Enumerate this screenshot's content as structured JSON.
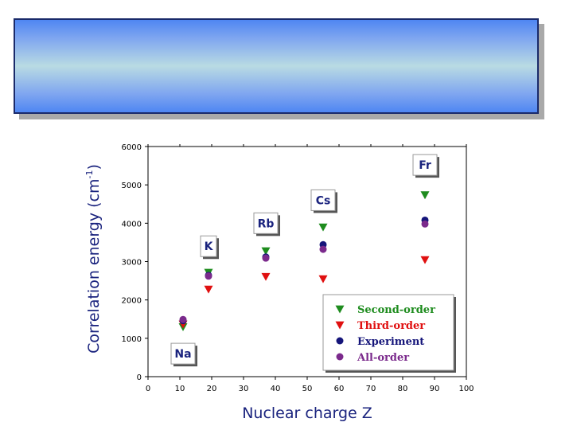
{
  "colors": {
    "second_order": "#1e8c1e",
    "third_order": "#e01010",
    "experiment": "#15157a",
    "all_order": "#7b2a8c",
    "axis_label": "#1a237e"
  },
  "chart_data": {
    "type": "scatter",
    "title": "",
    "xlabel": "Nuclear charge Z",
    "ylabel": "Correlation energy (cm",
    "ylabel_sup": "-1",
    "ylabel_close": ")",
    "xlim": [
      0,
      100
    ],
    "ylim": [
      0,
      6000
    ],
    "xticks": [
      0,
      10,
      20,
      30,
      40,
      50,
      60,
      70,
      80,
      90,
      100
    ],
    "yticks": [
      0,
      1000,
      2000,
      3000,
      4000,
      5000,
      6000
    ],
    "series": [
      {
        "name": "Second-order",
        "marker": "triangle-down",
        "color": "#1e8c1e",
        "x": [
          11,
          19,
          37,
          55,
          87
        ],
        "y": [
          1300,
          2720,
          3280,
          3900,
          4740
        ]
      },
      {
        "name": "Third-order",
        "marker": "triangle-down",
        "color": "#e01010",
        "x": [
          11,
          19,
          37,
          55,
          87
        ],
        "y": [
          1370,
          2280,
          2610,
          2550,
          3050
        ]
      },
      {
        "name": "Experiment",
        "marker": "circle",
        "color": "#15157a",
        "x": [
          11,
          19,
          37,
          55,
          87
        ],
        "y": [
          1460,
          2640,
          3120,
          3440,
          4080
        ]
      },
      {
        "name": "All-order",
        "marker": "circle",
        "color": "#7b2a8c",
        "x": [
          11,
          19,
          37,
          55,
          87
        ],
        "y": [
          1490,
          2620,
          3090,
          3320,
          3980
        ]
      }
    ],
    "annotations": [
      {
        "text": "Na",
        "x": 11,
        "y": 600
      },
      {
        "text": "K",
        "x": 19,
        "y": 3400
      },
      {
        "text": "Rb",
        "x": 37,
        "y": 4000
      },
      {
        "text": "Cs",
        "x": 55,
        "y": 4600
      },
      {
        "text": "Fr",
        "x": 87,
        "y": 5520
      }
    ],
    "legend_position": "bottom-right"
  }
}
